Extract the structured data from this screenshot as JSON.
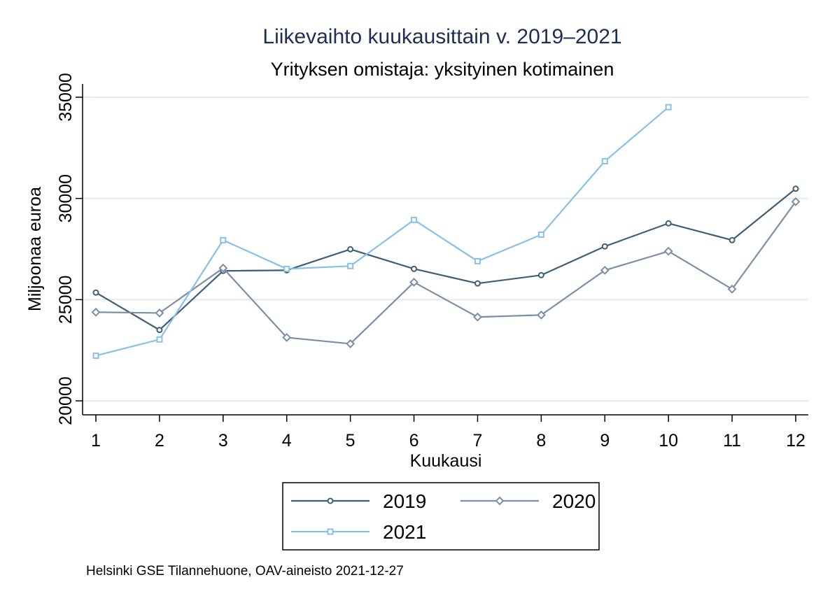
{
  "chart_data": {
    "type": "line",
    "title": "Liikevaihto kuukausittain v. 2019–2021",
    "subtitle": "Yrityksen omistaja: yksityinen kotimainen",
    "xlabel": "Kuukausi",
    "ylabel": "Miljoonaa euroa",
    "x": [
      1,
      2,
      3,
      4,
      5,
      6,
      7,
      8,
      9,
      10,
      11,
      12
    ],
    "xticks": [
      "1",
      "2",
      "3",
      "4",
      "5",
      "6",
      "7",
      "8",
      "9",
      "10",
      "11",
      "12"
    ],
    "yticks": [
      20000,
      25000,
      30000,
      35000
    ],
    "ylim": [
      19200,
      35600
    ],
    "xlim": [
      0.85,
      12.2
    ],
    "grid": true,
    "legend_placement": "bottom",
    "series": [
      {
        "name": "2019",
        "color": "#3e5f75",
        "marker": "circle",
        "values": [
          25350,
          23500,
          26420,
          26450,
          27490,
          26520,
          25800,
          26210,
          27630,
          28770,
          27940,
          30480
        ]
      },
      {
        "name": "2020",
        "color": "#7b8fa6",
        "marker": "diamond",
        "values": [
          24380,
          24340,
          26560,
          23130,
          22820,
          25860,
          24140,
          24240,
          26450,
          27390,
          25520,
          29840
        ]
      },
      {
        "name": "2021",
        "color": "#88c1e8",
        "marker": "square",
        "values": [
          22230,
          23030,
          27940,
          26520,
          26660,
          28940,
          26900,
          28210,
          31840,
          34510,
          null,
          null
        ]
      }
    ],
    "note": "Helsinki GSE Tilannehuone, OAV-aineisto 2021-12-27"
  }
}
